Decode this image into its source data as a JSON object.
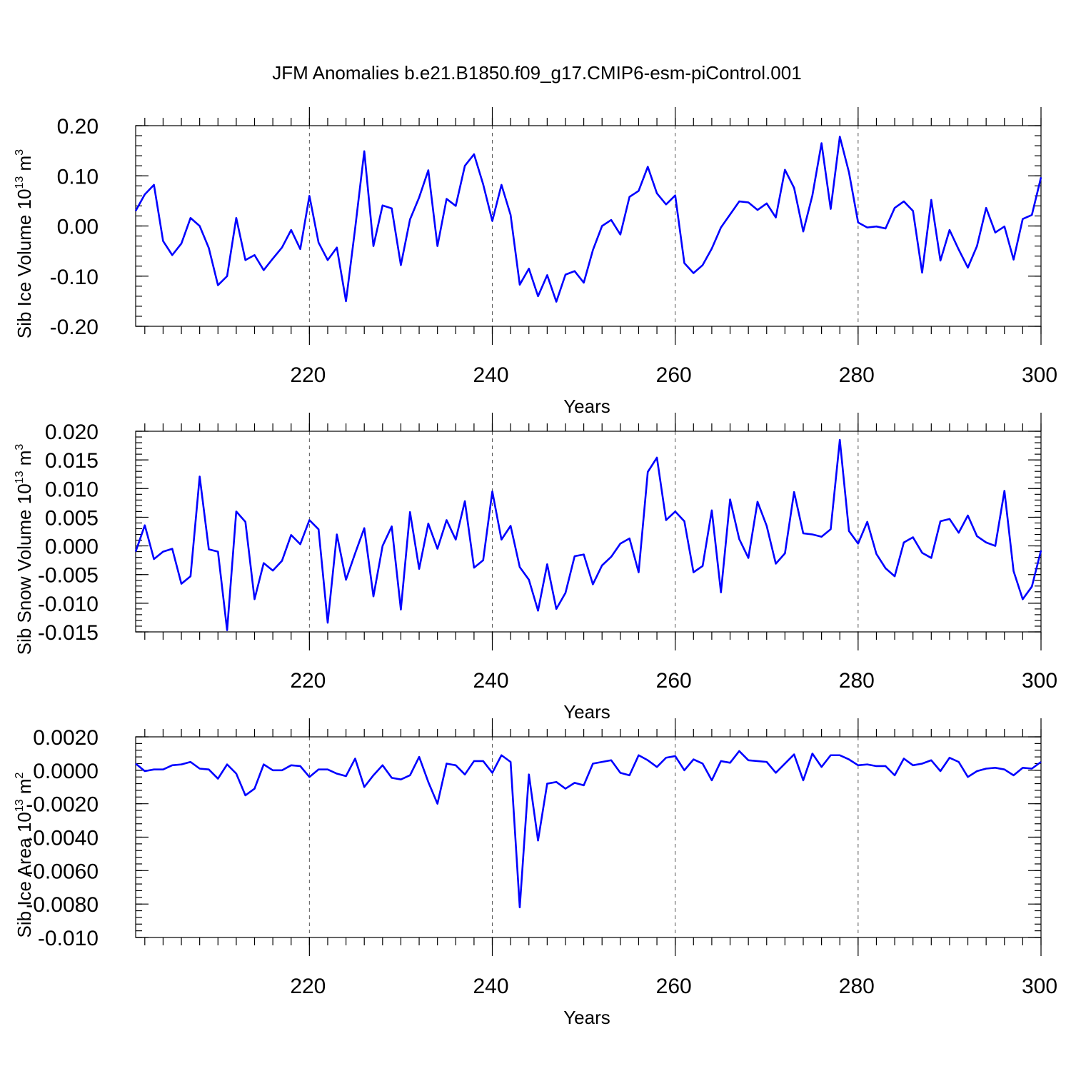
{
  "title": "JFM Anomalies b.e21.B1850.f09_g17.CMIP6-esm-piControl.001",
  "line_color": "#0000ff",
  "chart_data": [
    {
      "type": "line",
      "title": "JFM Anomalies b.e21.B1850.f09_g17.CMIP6-esm-piControl.001",
      "xlabel": "Years",
      "ylabel": "Sib Ice Volume 10",
      "ylabel_exp": "13",
      "ylabel_unit": " m",
      "ylabel_unit_exp": "3",
      "xlim": [
        201,
        300
      ],
      "ylim": [
        -0.2,
        0.2
      ],
      "x_ticks": [
        220,
        240,
        260,
        280,
        300
      ],
      "x_tick_labels": [
        "220",
        "240",
        "260",
        "280",
        "300"
      ],
      "y_ticks": [
        -0.2,
        -0.1,
        0.0,
        0.1,
        0.2
      ],
      "y_tick_labels": [
        "-0.20",
        "-0.10",
        "0.00",
        "0.10",
        "0.20"
      ],
      "y_minor_step": 0.02,
      "grid": "x-dashed",
      "series": [
        {
          "x_start": 201,
          "values": [
            0.03,
            0.063,
            0.082,
            -0.03,
            -0.058,
            -0.035,
            0.016,
            0.0,
            -0.044,
            -0.118,
            -0.1,
            0.016,
            -0.068,
            -0.058,
            -0.088,
            -0.065,
            -0.043,
            -0.008,
            -0.046,
            0.06,
            -0.033,
            -0.068,
            -0.043,
            -0.15,
            -0.005,
            0.149,
            -0.04,
            0.041,
            0.035,
            -0.078,
            0.013,
            0.057,
            0.111,
            -0.04,
            0.054,
            0.04,
            0.12,
            0.143,
            0.083,
            0.01,
            0.082,
            0.022,
            -0.117,
            -0.085,
            -0.14,
            -0.098,
            -0.151,
            -0.097,
            -0.09,
            -0.113,
            -0.048,
            0.0,
            0.012,
            -0.017,
            0.058,
            0.07,
            0.118,
            0.065,
            0.043,
            0.061,
            -0.074,
            -0.094,
            -0.078,
            -0.045,
            -0.003,
            0.023,
            0.049,
            0.047,
            0.032,
            0.045,
            0.017,
            0.112,
            0.076,
            -0.011,
            0.061,
            0.165,
            0.034,
            0.178,
            0.107,
            0.007,
            -0.003,
            -0.001,
            -0.005,
            0.036,
            0.049,
            0.03,
            -0.093,
            0.052,
            -0.069,
            -0.008,
            -0.047,
            -0.083,
            -0.04,
            0.036,
            -0.013,
            -0.001,
            -0.067,
            0.014,
            0.022,
            0.097
          ]
        }
      ]
    },
    {
      "type": "line",
      "xlabel": "Years",
      "ylabel": "Sib Snow Volume 10",
      "ylabel_exp": "13",
      "ylabel_unit": " m",
      "ylabel_unit_exp": "3",
      "xlim": [
        201,
        300
      ],
      "ylim": [
        -0.015,
        0.02
      ],
      "x_ticks": [
        220,
        240,
        260,
        280,
        300
      ],
      "x_tick_labels": [
        "220",
        "240",
        "260",
        "280",
        "300"
      ],
      "y_ticks": [
        -0.015,
        -0.01,
        -0.005,
        0.0,
        0.005,
        0.01,
        0.015,
        0.02
      ],
      "y_tick_labels": [
        "-0.015",
        "-0.010",
        "-0.005",
        "0.000",
        "0.005",
        "0.010",
        "0.015",
        "0.020"
      ],
      "y_minor_step": 0.001,
      "grid": "x-dashed",
      "series": [
        {
          "x_start": 201,
          "values": [
            -0.001,
            0.0036,
            -0.0023,
            -0.001,
            -0.0005,
            -0.0066,
            -0.0053,
            0.0121,
            -0.0006,
            -0.001,
            -0.0147,
            0.006,
            0.0042,
            -0.0093,
            -0.003,
            -0.0043,
            -0.0026,
            0.0019,
            0.0003,
            0.0045,
            0.0029,
            -0.0134,
            0.002,
            -0.0059,
            -0.0013,
            0.0031,
            -0.0088,
            0.0,
            0.0034,
            -0.0111,
            0.0059,
            -0.004,
            0.0039,
            -0.0005,
            0.0045,
            0.0011,
            0.0078,
            -0.0038,
            -0.0025,
            0.0095,
            0.0011,
            0.0035,
            -0.0037,
            -0.0059,
            -0.0113,
            -0.0032,
            -0.011,
            -0.0082,
            -0.0018,
            -0.0015,
            -0.0067,
            -0.0034,
            -0.0019,
            0.0004,
            0.0013,
            -0.0046,
            0.0129,
            0.0154,
            0.0045,
            0.006,
            0.0043,
            -0.0046,
            -0.0035,
            0.0062,
            -0.0081,
            0.0081,
            0.0012,
            -0.0021,
            0.0077,
            0.0035,
            -0.0031,
            -0.0013,
            0.0094,
            0.0022,
            0.002,
            0.0016,
            0.0029,
            0.0185,
            0.0026,
            0.0004,
            0.0042,
            -0.0014,
            -0.0039,
            -0.0053,
            0.0006,
            0.0015,
            -0.0012,
            -0.0021,
            0.0043,
            0.0047,
            0.0023,
            0.0053,
            0.0017,
            0.0006,
            0.0,
            0.0096,
            -0.0044,
            -0.0093,
            -0.0071,
            -0.0008
          ]
        }
      ]
    },
    {
      "type": "line",
      "xlabel": "Years",
      "ylabel": "Sib Ice Area 10",
      "ylabel_exp": "13",
      "ylabel_unit": " m",
      "ylabel_unit_exp": "2",
      "xlim": [
        201,
        300
      ],
      "ylim": [
        -0.01,
        0.002
      ],
      "x_ticks": [
        220,
        240,
        260,
        280,
        300
      ],
      "x_tick_labels": [
        "220",
        "240",
        "260",
        "280",
        "300"
      ],
      "y_ticks": [
        -0.01,
        -0.008,
        -0.006,
        -0.004,
        -0.002,
        0.0,
        0.002
      ],
      "y_tick_labels": [
        "-0.010",
        "-0.0080",
        "-0.0060",
        "-0.0040",
        "-0.0020",
        "0.0000",
        "0.0020"
      ],
      "y_minor_step": 0.0004,
      "grid": "x-dashed",
      "series": [
        {
          "x_start": 201,
          "values": [
            0.0004,
            -5e-05,
            5e-05,
            5e-05,
            0.0003,
            0.00035,
            0.0005,
            0.0001,
            5e-05,
            -0.0005,
            0.00035,
            -0.0002,
            -0.0015,
            -0.0011,
            0.00035,
            0.0,
            0.0,
            0.0003,
            0.00025,
            -0.0004,
            5e-05,
            5e-05,
            -0.0002,
            -0.00035,
            0.0007,
            -0.001,
            -0.0003,
            0.0003,
            -0.00045,
            -0.00055,
            -0.0003,
            0.0008,
            -0.0007,
            -0.002,
            0.0004,
            0.0003,
            -0.00025,
            0.00055,
            0.00055,
            -0.00015,
            0.0009,
            0.0005,
            -0.0082,
            -0.00025,
            -0.0042,
            -0.0008,
            -0.0007,
            -0.0011,
            -0.00075,
            -0.0009,
            0.0004,
            0.0005,
            0.0006,
            -0.00015,
            -0.0003,
            0.0009,
            0.0006,
            0.0002,
            0.00075,
            0.00085,
            0.0,
            0.00065,
            0.0004,
            -0.0006,
            0.00055,
            0.00045,
            0.00115,
            0.0006,
            0.00055,
            0.0005,
            -0.00015,
            0.0004,
            0.00095,
            -0.0006,
            0.001,
            0.0002,
            0.0009,
            0.0009,
            0.00065,
            0.0003,
            0.00035,
            0.00025,
            0.00025,
            -0.0003,
            0.0007,
            0.0003,
            0.0004,
            0.0006,
            -5e-05,
            0.00075,
            0.0005,
            -0.0004,
            -5e-05,
            0.0001,
            0.00015,
            5e-05,
            -0.0003,
            0.00015,
            0.0001,
            0.0005
          ]
        }
      ]
    }
  ]
}
